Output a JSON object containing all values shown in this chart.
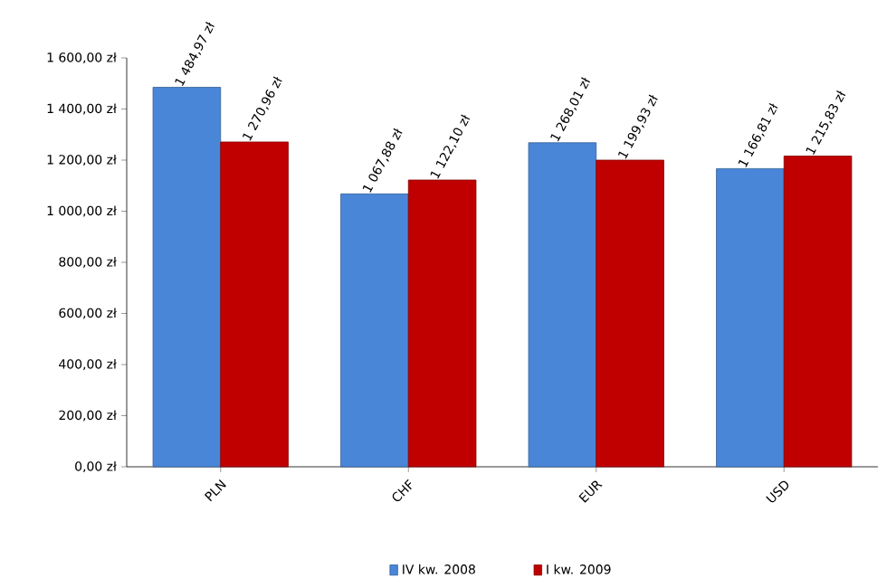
{
  "chart_data": {
    "type": "bar",
    "categories": [
      "PLN",
      "CHF",
      "EUR",
      "USD"
    ],
    "series": [
      {
        "name": "IV kw. 2008",
        "color": "#4a86d8",
        "values": [
          1484.97,
          1067.88,
          1268.01,
          1166.81
        ],
        "value_labels": [
          "1 484,97 zł",
          "1 067,88 zł",
          "1 268,01 zł",
          "1 166,81 zł"
        ]
      },
      {
        "name": "I kw. 2009",
        "color": "#c00000",
        "values": [
          1270.96,
          1122.1,
          1199.93,
          1215.83
        ],
        "value_labels": [
          "1 270,96 zł",
          "1 122,10 zł",
          "1 199,93 zł",
          "1 215,83 zł"
        ]
      }
    ],
    "ylim": [
      0,
      1600
    ],
    "yticks": [
      {
        "value": 0,
        "label": "0,00 zł"
      },
      {
        "value": 200,
        "label": "200,00 zł"
      },
      {
        "value": 400,
        "label": "400,00 zł"
      },
      {
        "value": 600,
        "label": "600,00 zł"
      },
      {
        "value": 800,
        "label": "800,00 zł"
      },
      {
        "value": 1000,
        "label": "1 000,00 zł"
      },
      {
        "value": 1200,
        "label": "1 200,00 zł"
      },
      {
        "value": 1400,
        "label": "1 400,00 zł"
      },
      {
        "value": 1600,
        "label": "1 600,00 zł"
      }
    ],
    "legend": "bottom"
  }
}
